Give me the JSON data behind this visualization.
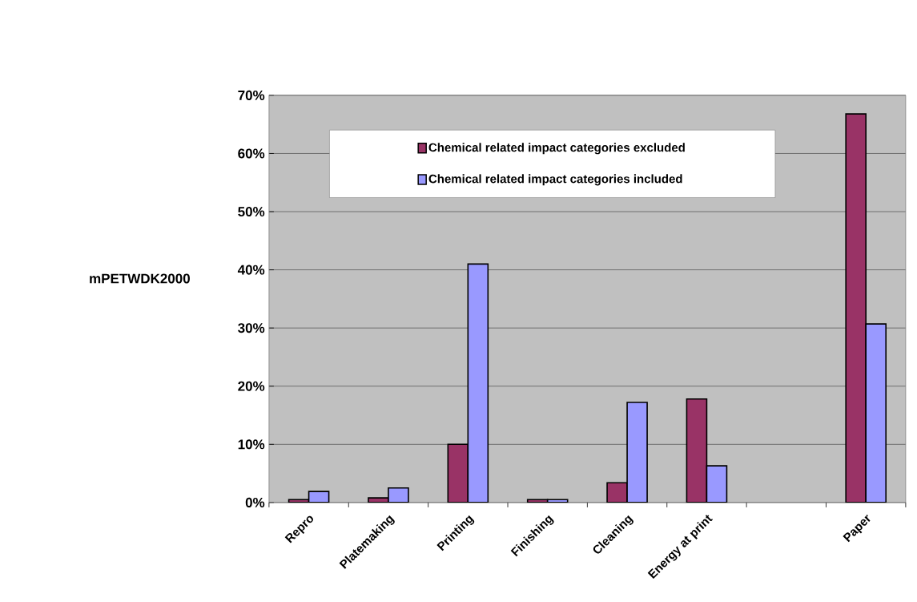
{
  "chart_data": {
    "type": "bar",
    "ylabel": "mPETWDK2000",
    "categories": [
      "Repro",
      "Platemaking",
      "Printing",
      "Finishing",
      "Cleaning",
      "Energy at print",
      null,
      "Paper"
    ],
    "series": [
      {
        "name": "Chemical related impact categories excluded",
        "color": "#993366",
        "values": [
          0.5,
          0.8,
          10,
          0.5,
          3.4,
          17.8,
          null,
          66.8
        ]
      },
      {
        "name": "Chemical related impact categories included",
        "color": "#9999ff",
        "values": [
          1.9,
          2.5,
          41,
          0.5,
          17.2,
          6.3,
          null,
          30.7
        ]
      }
    ],
    "ylim": [
      0,
      70
    ],
    "yticks": [
      {
        "value": 0,
        "label": "0%"
      },
      {
        "value": 10,
        "label": "10%"
      },
      {
        "value": 20,
        "label": "20%"
      },
      {
        "value": 30,
        "label": "30%"
      },
      {
        "value": 40,
        "label": "40%"
      },
      {
        "value": 50,
        "label": "50%"
      },
      {
        "value": 60,
        "label": "60%"
      },
      {
        "value": 70,
        "label": "70%"
      }
    ],
    "grid": "y",
    "legend": "top"
  }
}
